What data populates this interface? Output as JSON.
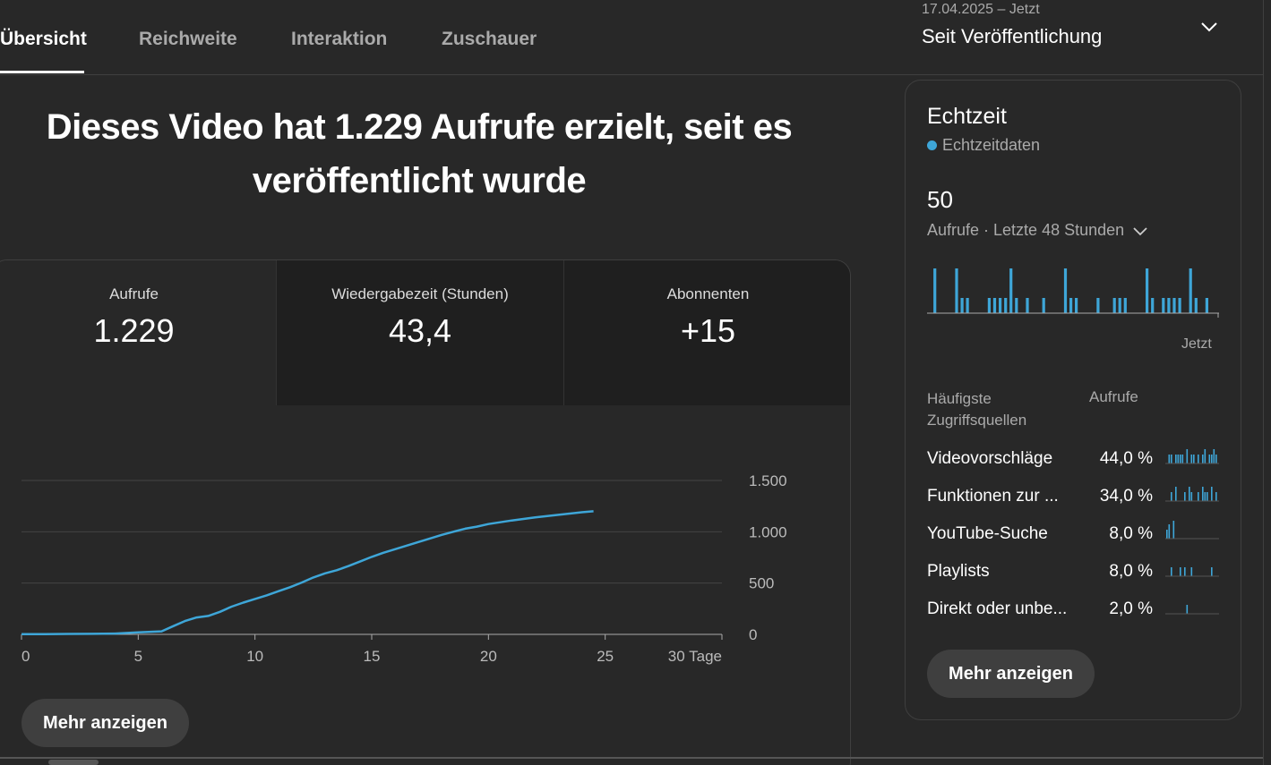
{
  "tabs": [
    {
      "label": "Übersicht",
      "active": true
    },
    {
      "label": "Reichweite",
      "active": false
    },
    {
      "label": "Interaktion",
      "active": false
    },
    {
      "label": "Zuschauer",
      "active": false
    }
  ],
  "date_picker": {
    "range": "17.04.2025 – Jetzt",
    "label": "Seit Veröffentlichung",
    "icon": "chevron-down-icon"
  },
  "headline": "Dieses Video hat 1.229 Aufrufe erzielt, seit es veröffentlicht wurde",
  "metrics": [
    {
      "label": "Aufrufe",
      "value": "1.229"
    },
    {
      "label": "Wiedergabezeit (Stunden)",
      "value": "43,4"
    },
    {
      "label": "Abonnenten",
      "value": "+15"
    }
  ],
  "main_button": "Mehr anzeigen",
  "colors": {
    "accent": "#3ea6d8",
    "background": "#282828",
    "card_dark": "#1f1f1f"
  },
  "chart_data": {
    "type": "line",
    "x_tick_labels": [
      "0",
      "5",
      "10",
      "15",
      "20",
      "25",
      "30 Tage"
    ],
    "x_ticks": [
      0,
      5,
      10,
      15,
      20,
      25,
      30
    ],
    "y_tick_labels": [
      "0",
      "500",
      "1.000",
      "1.500"
    ],
    "y_ticks": [
      0,
      500,
      1000,
      1500
    ],
    "xlim": [
      0,
      30
    ],
    "ylim": [
      0,
      1500
    ],
    "grid": true,
    "x": [
      0,
      1,
      2,
      3,
      4,
      5,
      6,
      6.5,
      7,
      7.5,
      8,
      8.5,
      9,
      9.5,
      10,
      10.5,
      11,
      11.5,
      12,
      12.5,
      13,
      13.5,
      14,
      14.5,
      15,
      15.5,
      16,
      16.5,
      17,
      17.5,
      18,
      18.5,
      19,
      19.5,
      20,
      21,
      22,
      23,
      24,
      24.5
    ],
    "y": [
      2,
      3,
      4,
      5,
      8,
      20,
      30,
      80,
      130,
      165,
      180,
      220,
      270,
      310,
      345,
      380,
      420,
      460,
      505,
      555,
      595,
      625,
      665,
      710,
      755,
      795,
      830,
      865,
      900,
      935,
      970,
      1000,
      1030,
      1050,
      1075,
      1110,
      1140,
      1165,
      1190,
      1200
    ]
  },
  "realtime": {
    "title": "Echtzeit",
    "subtitle": "Echtzeitdaten",
    "count": "50",
    "period": "Aufrufe · Letzte 48 Stunden",
    "now_label": "Jetzt",
    "bars": [
      0,
      2,
      0,
      0,
      0,
      2,
      1,
      1,
      0,
      0,
      0,
      1,
      1,
      1,
      1,
      2,
      1,
      0,
      1,
      0,
      0,
      1,
      0,
      0,
      0,
      2,
      1,
      1,
      0,
      0,
      0,
      1,
      0,
      0,
      1,
      1,
      1,
      0,
      0,
      0,
      2,
      1,
      0,
      1,
      1,
      1,
      1,
      0,
      2,
      1,
      0,
      1,
      0
    ]
  },
  "sources": {
    "header_name": "Häufigste Zugriffsquellen",
    "header_value": "Aufrufe",
    "rows": [
      {
        "name": "Videovorschläge",
        "pct": "44,0 %"
      },
      {
        "name": "Funktionen zur ...",
        "pct": "34,0 %"
      },
      {
        "name": "YouTube-Suche",
        "pct": "8,0 %"
      },
      {
        "name": "Playlists",
        "pct": "8,0 %"
      },
      {
        "name": "Direkt oder unbe...",
        "pct": "2,0 %"
      }
    ],
    "button": "Mehr anzeigen"
  }
}
